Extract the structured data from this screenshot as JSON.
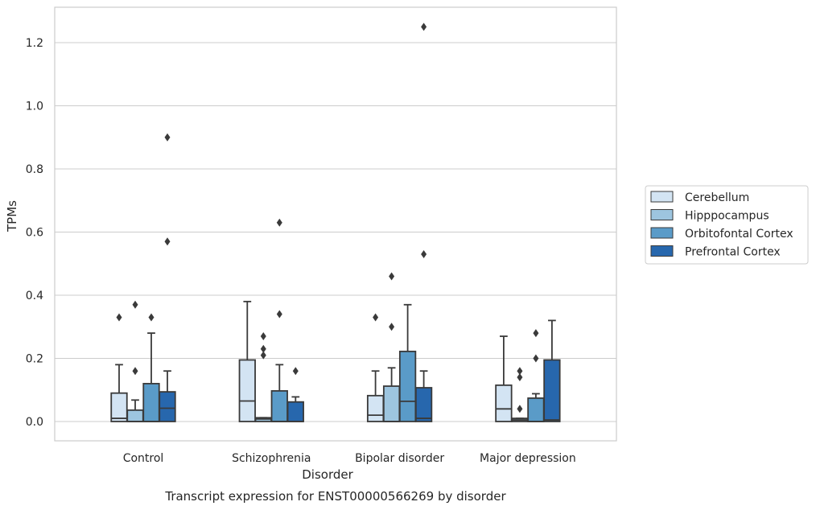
{
  "chart_data": {
    "type": "box",
    "title": "",
    "caption": "Transcript expression for ENST00000566269 by disorder",
    "xlabel": "Disorder",
    "ylabel": "TPMs",
    "ylim": [
      -0.06,
      1.32
    ],
    "yticks": [
      0.0,
      0.2,
      0.4,
      0.6,
      0.8,
      1.0,
      1.2
    ],
    "ytick_labels": [
      "0.0",
      "0.2",
      "0.4",
      "0.6",
      "0.8",
      "1.0",
      "1.2"
    ],
    "grid": "horizontal",
    "legend_position": "right",
    "categories": [
      "Control",
      "Schizophrenia",
      "Bipolar disorder",
      "Major depression"
    ],
    "series": [
      {
        "name": "Cerebellum",
        "color": "#d3e4f3",
        "boxes": [
          {
            "min": 0.0,
            "q1": 0.0,
            "median": 0.01,
            "q3": 0.09,
            "max": 0.18,
            "outliers": [
              0.33
            ]
          },
          {
            "min": 0.0,
            "q1": 0.0,
            "median": 0.065,
            "q3": 0.195,
            "max": 0.38,
            "outliers": []
          },
          {
            "min": 0.0,
            "q1": 0.0,
            "median": 0.02,
            "q3": 0.082,
            "max": 0.16,
            "outliers": [
              0.33
            ]
          },
          {
            "min": 0.0,
            "q1": 0.0,
            "median": 0.04,
            "q3": 0.115,
            "max": 0.27,
            "outliers": []
          }
        ]
      },
      {
        "name": "Hipppocampus",
        "color": "#9dc5df",
        "boxes": [
          {
            "min": 0.0,
            "q1": 0.0,
            "median": 0.0,
            "q3": 0.036,
            "max": 0.068,
            "outliers": [
              0.16,
              0.37
            ]
          },
          {
            "min": 0.0,
            "q1": 0.0,
            "median": 0.008,
            "q3": 0.012,
            "max": 0.012,
            "outliers": [
              0.21,
              0.23,
              0.27
            ]
          },
          {
            "min": 0.0,
            "q1": 0.0,
            "median": 0.0,
            "q3": 0.112,
            "max": 0.17,
            "outliers": [
              0.3,
              0.46
            ]
          },
          {
            "min": 0.0,
            "q1": 0.0,
            "median": 0.005,
            "q3": 0.01,
            "max": 0.01,
            "outliers": [
              0.04,
              0.14,
              0.16
            ]
          }
        ]
      },
      {
        "name": "Orbitofontal Cortex",
        "color": "#5a9bc8",
        "boxes": [
          {
            "min": 0.0,
            "q1": 0.0,
            "median": 0.0,
            "q3": 0.12,
            "max": 0.28,
            "outliers": [
              0.33
            ]
          },
          {
            "min": 0.0,
            "q1": 0.0,
            "median": 0.0,
            "q3": 0.097,
            "max": 0.18,
            "outliers": [
              0.34,
              0.63
            ]
          },
          {
            "min": 0.0,
            "q1": 0.0,
            "median": 0.064,
            "q3": 0.222,
            "max": 0.37,
            "outliers": []
          },
          {
            "min": 0.0,
            "q1": 0.0,
            "median": 0.0,
            "q3": 0.074,
            "max": 0.088,
            "outliers": [
              0.2,
              0.28
            ]
          }
        ]
      },
      {
        "name": "Prefrontal Cortex",
        "color": "#2767ad",
        "boxes": [
          {
            "min": 0.0,
            "q1": 0.0,
            "median": 0.042,
            "q3": 0.094,
            "max": 0.16,
            "outliers": [
              0.57,
              0.9
            ]
          },
          {
            "min": 0.0,
            "q1": 0.0,
            "median": 0.0,
            "q3": 0.062,
            "max": 0.078,
            "outliers": [
              0.16
            ]
          },
          {
            "min": 0.0,
            "q1": 0.0,
            "median": 0.01,
            "q3": 0.107,
            "max": 0.16,
            "outliers": [
              0.53,
              1.25
            ]
          },
          {
            "min": 0.0,
            "q1": 0.0,
            "median": 0.005,
            "q3": 0.195,
            "max": 0.32,
            "outliers": []
          }
        ]
      }
    ]
  }
}
